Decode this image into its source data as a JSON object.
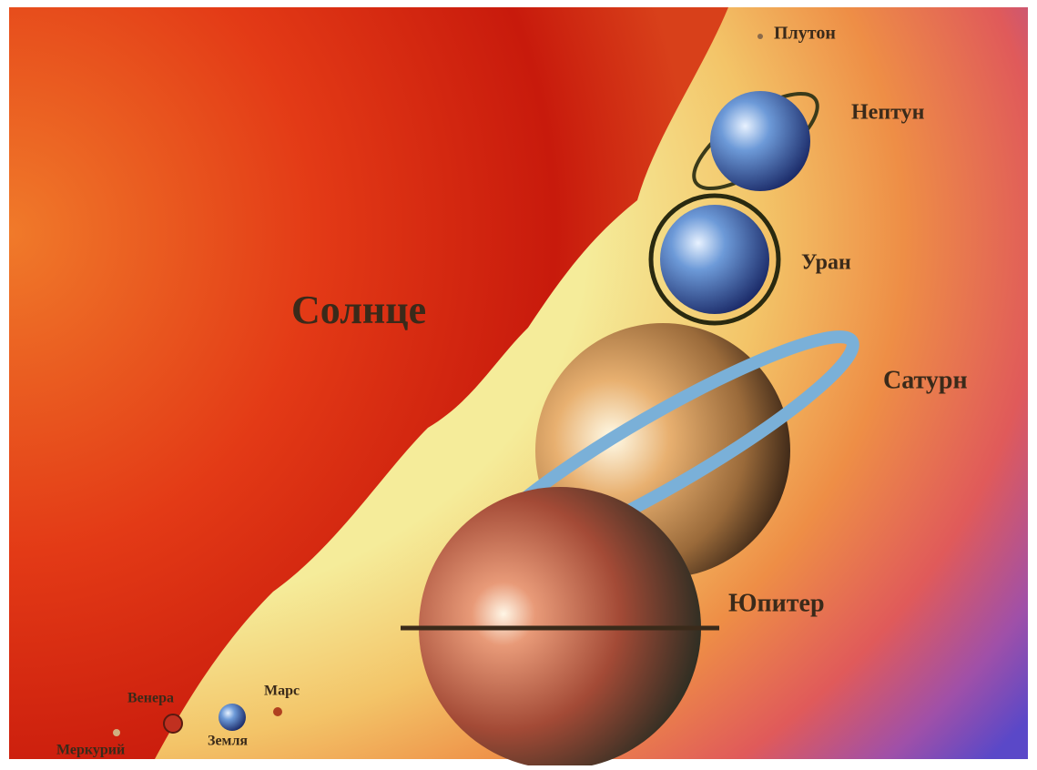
{
  "sun": {
    "label": "Солнце"
  },
  "planets": [
    {
      "label": "Плутон"
    },
    {
      "label": "Нептун"
    },
    {
      "label": "Уран"
    },
    {
      "label": "Сатурн"
    },
    {
      "label": "Юпитер"
    },
    {
      "label": "Марс"
    },
    {
      "label": "Венера"
    },
    {
      "label": "Земля"
    },
    {
      "label": "Меркурий"
    }
  ]
}
